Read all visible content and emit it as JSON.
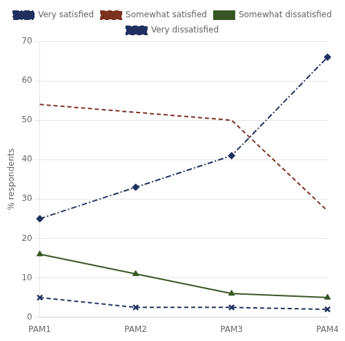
{
  "chart_data": {
    "type": "line",
    "categories": [
      "PAM1",
      "PAM2",
      "PAM3",
      "PAM4"
    ],
    "series": [
      {
        "name": "Very satisfied",
        "color": "#1f3060",
        "values": [
          25,
          33,
          41,
          66
        ],
        "marker": "diamond",
        "line_style": "dashdot"
      },
      {
        "name": "Somewhat satisfied",
        "color": "#7b3020",
        "values": [
          54,
          52,
          50,
          27
        ],
        "marker": "none",
        "line_style": "dashed"
      },
      {
        "name": "Somewhat dissatisfied",
        "color": "#375623",
        "values": [
          16,
          11,
          6,
          5
        ],
        "marker": "triangle",
        "line_style": "solid"
      },
      {
        "name": "Very dissatisfied",
        "color": "#1f3060",
        "values": [
          5,
          2.5,
          2.5,
          2
        ],
        "marker": "cross",
        "line_style": "dashed"
      }
    ],
    "y_label": "% respondents",
    "ylim": [
      0,
      70
    ],
    "yticks": [
      0,
      10,
      20,
      30,
      40,
      50,
      60,
      70
    ],
    "grid": true,
    "legend": "top"
  }
}
